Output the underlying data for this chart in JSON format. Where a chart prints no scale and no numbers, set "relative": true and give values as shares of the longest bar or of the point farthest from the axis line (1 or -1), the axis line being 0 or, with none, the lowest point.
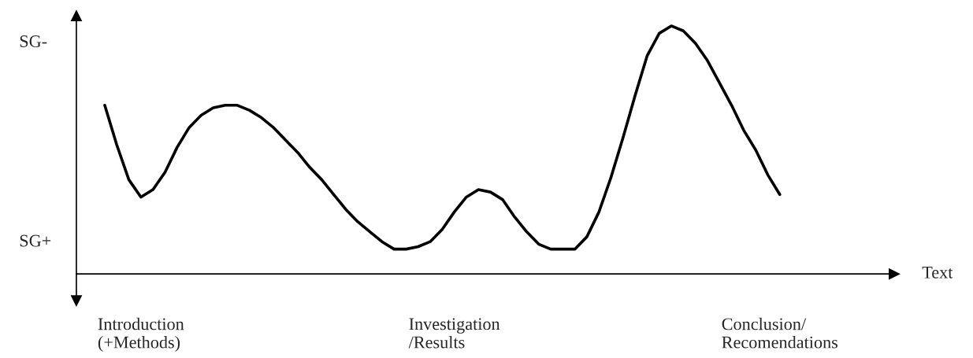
{
  "chart_data": {
    "type": "line",
    "relative": true,
    "xlabel": "Text",
    "categories": [
      null,
      null,
      null,
      "Introduction\n(+Methods)",
      null,
      null,
      null,
      null,
      null,
      null,
      null,
      null,
      null,
      null,
      null,
      null,
      null,
      null,
      null,
      null,
      null,
      null,
      null,
      null,
      null,
      null,
      null,
      null,
      null,
      "Investigation\n/Results",
      null,
      null,
      null,
      null,
      null,
      null,
      null,
      null,
      null,
      null,
      null,
      null,
      null,
      null,
      null,
      null,
      null,
      null,
      null,
      null,
      null,
      null,
      null,
      null,
      null,
      null,
      "Conclusion/\nRecomendations"
    ],
    "series": [
      {
        "color": "#000000",
        "values": [
          0.68,
          0.52,
          0.38,
          0.31,
          0.34,
          0.41,
          0.51,
          0.59,
          0.64,
          0.67,
          0.68,
          0.68,
          0.66,
          0.63,
          0.59,
          0.54,
          0.49,
          0.43,
          0.38,
          0.32,
          0.26,
          0.21,
          0.17,
          0.13,
          0.1,
          0.1,
          0.11,
          0.13,
          0.18,
          0.25,
          0.31,
          0.34,
          0.33,
          0.3,
          0.23,
          0.17,
          0.12,
          0.1,
          0.1,
          0.1,
          0.15,
          0.25,
          0.39,
          0.55,
          0.72,
          0.88,
          0.97,
          1.0,
          0.98,
          0.93,
          0.86,
          0.77,
          0.68,
          0.58,
          0.5,
          0.4,
          0.32
        ]
      }
    ],
    "annotations": [
      "SG-",
      "SG+"
    ],
    "marker": "none",
    "line_style": "solid",
    "grid": false,
    "legend": false
  }
}
